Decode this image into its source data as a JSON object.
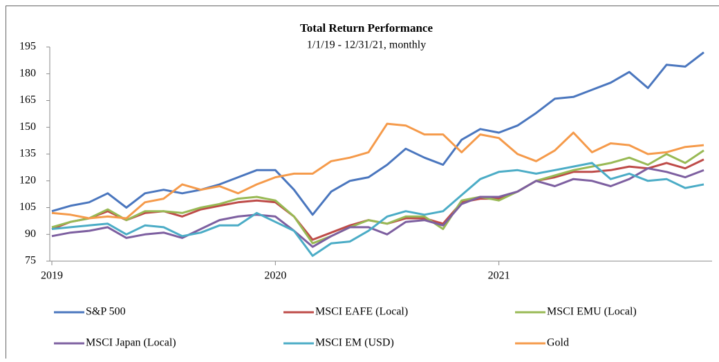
{
  "chart_data": {
    "type": "line",
    "title": "Total Return Performance",
    "subtitle": "1/1/19 - 12/31/21, monthly",
    "categories": [
      "2019",
      null,
      null,
      null,
      null,
      null,
      null,
      null,
      null,
      null,
      null,
      null,
      "2020",
      null,
      null,
      null,
      null,
      null,
      null,
      null,
      null,
      null,
      null,
      null,
      "2021",
      null,
      null,
      null,
      null,
      null,
      null,
      null,
      null,
      null,
      null,
      null
    ],
    "ylim": [
      75,
      195
    ],
    "yticks": [
      75,
      90,
      105,
      120,
      135,
      150,
      165,
      180,
      195
    ],
    "legend": "bottom",
    "series": [
      {
        "name": "S&P 500",
        "color": "#4a76be",
        "values": [
          103,
          106,
          108,
          113,
          105,
          113,
          115,
          113,
          115,
          118,
          122,
          126,
          126,
          115,
          101,
          114,
          120,
          122,
          129,
          138,
          133,
          129,
          143,
          149,
          147,
          151,
          158,
          166,
          167,
          171,
          175,
          181,
          172,
          185,
          184,
          192
        ]
      },
      {
        "name": "MSCI EAFE (Local)",
        "color": "#be4b48",
        "values": [
          93,
          97,
          99,
          103,
          98,
          102,
          103,
          100,
          104,
          106,
          108,
          109,
          108,
          100,
          87,
          91,
          95,
          98,
          96,
          99,
          99,
          96,
          108,
          110,
          110,
          114,
          120,
          122,
          125,
          125,
          126,
          128,
          127,
          130,
          127,
          132
        ]
      },
      {
        "name": "MSCI EMU (Local)",
        "color": "#98b954",
        "values": [
          94,
          97,
          99,
          104,
          98,
          103,
          103,
          102,
          105,
          107,
          110,
          111,
          109,
          100,
          85,
          89,
          94,
          98,
          96,
          100,
          100,
          93,
          109,
          111,
          109,
          114,
          120,
          123,
          126,
          128,
          130,
          133,
          129,
          135,
          130,
          137
        ]
      },
      {
        "name": "MSCI Japan (Local)",
        "color": "#7d5fa0",
        "values": [
          89,
          91,
          92,
          94,
          88,
          90,
          91,
          88,
          93,
          98,
          100,
          101,
          100,
          92,
          83,
          89,
          94,
          94,
          90,
          97,
          98,
          95,
          107,
          111,
          111,
          114,
          120,
          117,
          121,
          120,
          117,
          121,
          127,
          125,
          122,
          126
        ]
      },
      {
        "name": "MSCI EM (USD)",
        "color": "#4bacc6",
        "values": [
          93,
          94,
          95,
          96,
          90,
          95,
          94,
          89,
          91,
          95,
          95,
          102,
          97,
          92,
          78,
          85,
          86,
          92,
          100,
          103,
          101,
          103,
          112,
          121,
          125,
          126,
          124,
          126,
          128,
          130,
          121,
          124,
          120,
          121,
          116,
          118
        ]
      },
      {
        "name": "Gold",
        "color": "#f59a4a",
        "values": [
          102,
          101,
          99,
          100,
          99,
          108,
          110,
          118,
          115,
          117,
          113,
          118,
          122,
          124,
          124,
          131,
          133,
          136,
          152,
          151,
          146,
          146,
          136,
          146,
          144,
          135,
          131,
          137,
          147,
          136,
          141,
          140,
          135,
          136,
          139,
          140
        ]
      }
    ]
  }
}
